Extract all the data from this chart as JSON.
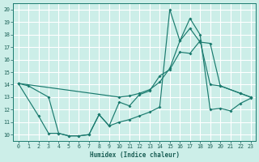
{
  "xlabel": "Humidex (Indice chaleur)",
  "xlim": [
    -0.5,
    23.5
  ],
  "ylim": [
    9.5,
    20.5
  ],
  "yticks": [
    10,
    11,
    12,
    13,
    14,
    15,
    16,
    17,
    18,
    19,
    20
  ],
  "xticks": [
    0,
    1,
    2,
    3,
    4,
    5,
    6,
    7,
    8,
    9,
    10,
    11,
    12,
    13,
    14,
    15,
    16,
    17,
    18,
    19,
    20,
    21,
    22,
    23
  ],
  "bg_color": "#cceee8",
  "grid_color": "#ffffff",
  "line_color": "#1a7a6e",
  "line1_x": [
    0,
    1,
    3,
    4,
    5,
    6,
    7,
    8,
    9,
    10,
    11,
    12,
    13,
    14,
    15,
    16,
    17,
    18,
    19,
    20,
    22,
    23
  ],
  "line1_y": [
    14.1,
    13.9,
    13.0,
    10.1,
    9.9,
    9.9,
    10.0,
    11.6,
    10.7,
    12.6,
    12.3,
    13.2,
    13.5,
    14.7,
    15.2,
    16.6,
    16.5,
    17.5,
    14.0,
    13.9,
    13.3,
    13.0
  ],
  "line2_x": [
    0,
    10,
    11,
    12,
    13,
    14,
    15,
    16,
    17,
    18,
    19,
    20,
    22,
    23
  ],
  "line2_y": [
    14.1,
    13.0,
    13.1,
    13.3,
    13.6,
    14.2,
    15.3,
    17.5,
    18.5,
    17.4,
    17.3,
    13.9,
    13.3,
    13.0
  ],
  "line3_x": [
    0,
    2,
    3,
    4,
    5,
    6,
    7,
    8,
    9,
    10,
    11,
    12,
    13,
    14,
    15,
    16,
    17,
    18,
    19,
    20,
    21,
    22,
    23
  ],
  "line3_y": [
    14.1,
    11.5,
    10.1,
    10.1,
    9.9,
    9.9,
    10.0,
    11.6,
    10.7,
    11.0,
    11.2,
    11.5,
    11.8,
    12.2,
    20.0,
    17.5,
    19.3,
    18.0,
    12.0,
    12.1,
    11.9,
    12.5,
    12.9
  ],
  "marker_size": 2.0,
  "line_width": 0.85
}
